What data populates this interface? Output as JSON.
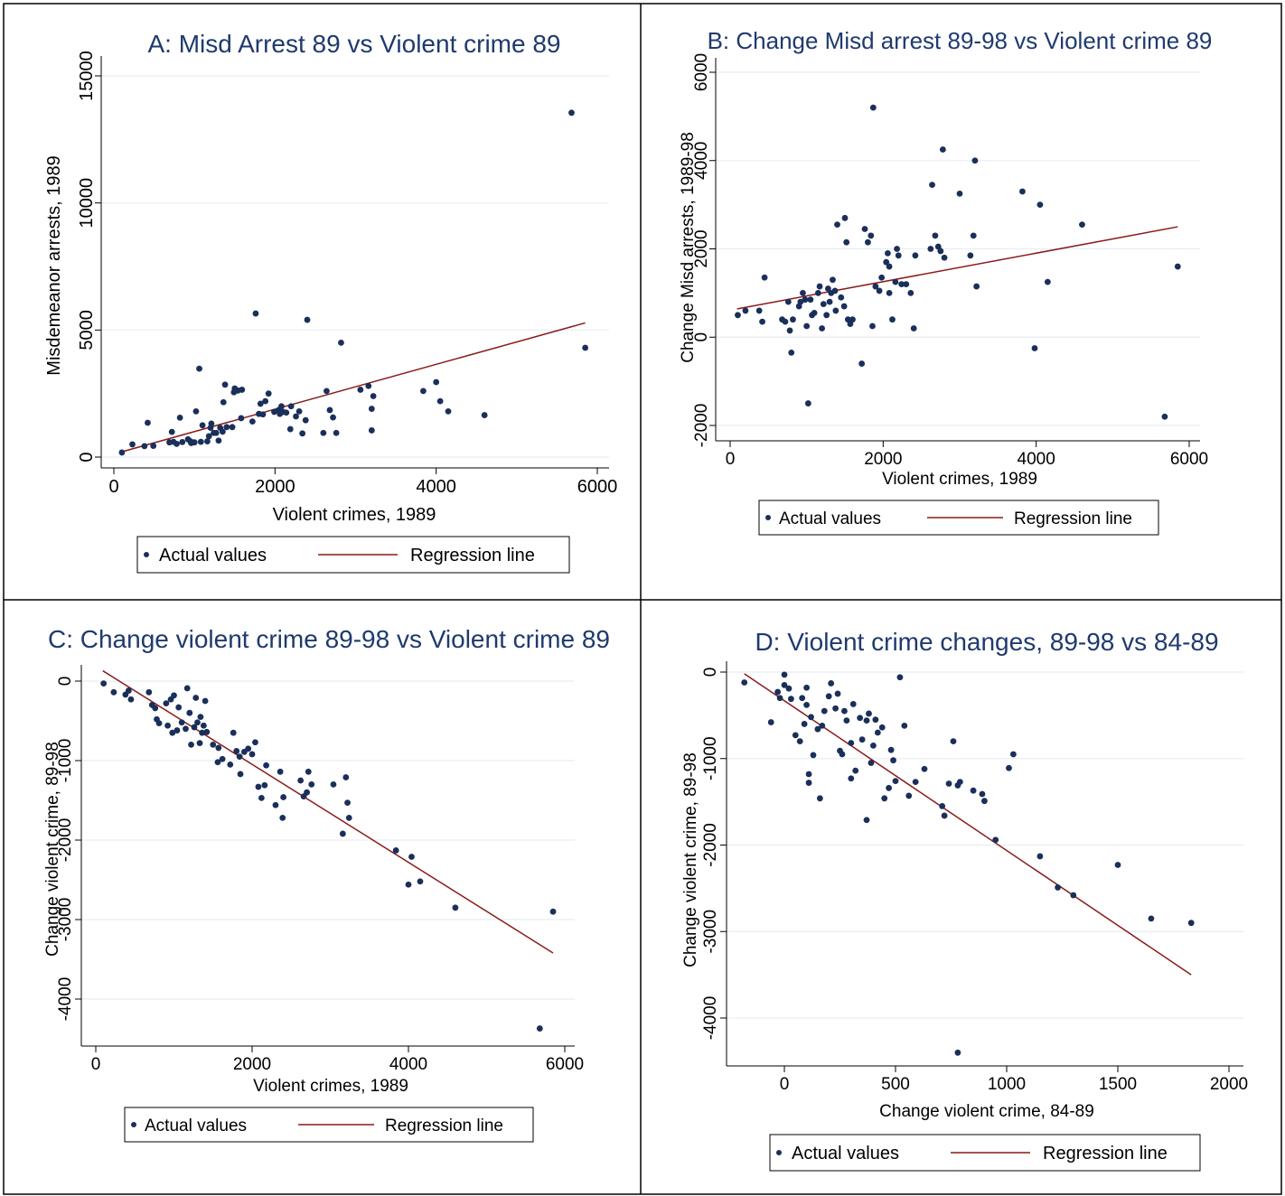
{
  "colors": {
    "point": "#1a2f5a",
    "line": "#8b1a1a",
    "grid": "#e8eef3",
    "title": "#1f3a6e",
    "frame": "#000000"
  },
  "legend_labels": {
    "points": "Actual values",
    "line": "Regression line"
  },
  "chart_data": [
    {
      "type": "scatter",
      "title": "A: Misd Arrest 89 vs Violent crime 89",
      "xlabel": "Violent crimes, 1989",
      "ylabel": "Misdemeanor arrests, 1989",
      "xlim": [
        0,
        6200
      ],
      "ylim": [
        0,
        15000
      ],
      "xticks": [
        0,
        2000,
        4000,
        6000
      ],
      "yticks": [
        0,
        5000,
        10000,
        15000
      ],
      "grid": true,
      "legend": "bottom",
      "regression": [
        [
          90,
          200
        ],
        [
          5850,
          5280
        ]
      ],
      "points": [
        [
          100,
          180
        ],
        [
          230,
          500
        ],
        [
          380,
          430
        ],
        [
          420,
          1350
        ],
        [
          490,
          440
        ],
        [
          690,
          580
        ],
        [
          720,
          990
        ],
        [
          740,
          600
        ],
        [
          780,
          520
        ],
        [
          820,
          1550
        ],
        [
          850,
          590
        ],
        [
          920,
          700
        ],
        [
          950,
          620
        ],
        [
          960,
          550
        ],
        [
          1000,
          580
        ],
        [
          1020,
          1800
        ],
        [
          1060,
          3480
        ],
        [
          1080,
          600
        ],
        [
          1100,
          1250
        ],
        [
          1160,
          620
        ],
        [
          1180,
          820
        ],
        [
          1200,
          1150
        ],
        [
          1210,
          1320
        ],
        [
          1240,
          950
        ],
        [
          1270,
          950
        ],
        [
          1300,
          650
        ],
        [
          1320,
          1150
        ],
        [
          1350,
          1000
        ],
        [
          1360,
          2160
        ],
        [
          1380,
          2850
        ],
        [
          1400,
          1180
        ],
        [
          1470,
          1180
        ],
        [
          1490,
          2550
        ],
        [
          1500,
          2700
        ],
        [
          1540,
          2620
        ],
        [
          1580,
          1530
        ],
        [
          1590,
          2650
        ],
        [
          1720,
          1400
        ],
        [
          1760,
          5650
        ],
        [
          1800,
          1700
        ],
        [
          1820,
          2100
        ],
        [
          1850,
          1680
        ],
        [
          1880,
          2200
        ],
        [
          1920,
          2500
        ],
        [
          1990,
          1780
        ],
        [
          2050,
          1860
        ],
        [
          2060,
          1700
        ],
        [
          2080,
          2000
        ],
        [
          2100,
          1780
        ],
        [
          2140,
          1750
        ],
        [
          2190,
          1100
        ],
        [
          2200,
          2000
        ],
        [
          2260,
          1600
        ],
        [
          2300,
          1800
        ],
        [
          2340,
          930
        ],
        [
          2380,
          1450
        ],
        [
          2400,
          5400
        ],
        [
          2820,
          4500
        ],
        [
          2600,
          950
        ],
        [
          2640,
          2600
        ],
        [
          2680,
          1850
        ],
        [
          2720,
          1560
        ],
        [
          2760,
          950
        ],
        [
          3060,
          2650
        ],
        [
          3160,
          2800
        ],
        [
          3200,
          1050
        ],
        [
          3220,
          2400
        ],
        [
          3200,
          1900
        ],
        [
          3840,
          2600
        ],
        [
          4000,
          2950
        ],
        [
          4050,
          2200
        ],
        [
          4150,
          1800
        ],
        [
          4600,
          1650
        ],
        [
          5680,
          13550
        ],
        [
          5850,
          4300
        ]
      ]
    },
    {
      "type": "scatter",
      "title": "B: Change Misd arrest 89-98 vs Violent crime 89",
      "xlabel": "Violent crimes, 1989",
      "ylabel": "Change Misd arrests, 1989-98",
      "xlim": [
        -300,
        6200
      ],
      "ylim": [
        -2200,
        6200
      ],
      "xticks": [
        0,
        2000,
        4000,
        6000
      ],
      "yticks": [
        -2000,
        0,
        2000,
        4000,
        6000
      ],
      "grid": true,
      "legend": "bottom",
      "regression": [
        [
          90,
          640
        ],
        [
          5850,
          2500
        ]
      ],
      "points": [
        [
          100,
          500
        ],
        [
          200,
          600
        ],
        [
          380,
          600
        ],
        [
          420,
          350
        ],
        [
          450,
          1350
        ],
        [
          680,
          400
        ],
        [
          720,
          350
        ],
        [
          760,
          800
        ],
        [
          780,
          150
        ],
        [
          800,
          -350
        ],
        [
          820,
          400
        ],
        [
          900,
          700
        ],
        [
          920,
          800
        ],
        [
          950,
          1000
        ],
        [
          980,
          850
        ],
        [
          1000,
          250
        ],
        [
          1020,
          -1500
        ],
        [
          1050,
          850
        ],
        [
          1070,
          500
        ],
        [
          1100,
          550
        ],
        [
          1150,
          1000
        ],
        [
          1170,
          1150
        ],
        [
          1200,
          200
        ],
        [
          1220,
          750
        ],
        [
          1260,
          500
        ],
        [
          1280,
          1100
        ],
        [
          1300,
          800
        ],
        [
          1320,
          1000
        ],
        [
          1340,
          1300
        ],
        [
          1370,
          1050
        ],
        [
          1380,
          600
        ],
        [
          1400,
          2550
        ],
        [
          1450,
          900
        ],
        [
          1490,
          700
        ],
        [
          1500,
          2700
        ],
        [
          1520,
          2150
        ],
        [
          1540,
          400
        ],
        [
          1570,
          300
        ],
        [
          1600,
          400
        ],
        [
          1720,
          -600
        ],
        [
          1760,
          2450
        ],
        [
          1800,
          2150
        ],
        [
          1840,
          2300
        ],
        [
          1860,
          250
        ],
        [
          1870,
          5200
        ],
        [
          1900,
          1150
        ],
        [
          1950,
          1050
        ],
        [
          1980,
          1350
        ],
        [
          2040,
          1700
        ],
        [
          2060,
          1900
        ],
        [
          2080,
          1600
        ],
        [
          2080,
          1000
        ],
        [
          2120,
          400
        ],
        [
          2160,
          1250
        ],
        [
          2180,
          2000
        ],
        [
          2200,
          1850
        ],
        [
          2240,
          1200
        ],
        [
          2300,
          1200
        ],
        [
          2360,
          1000
        ],
        [
          2400,
          200
        ],
        [
          2420,
          1850
        ],
        [
          2620,
          2000
        ],
        [
          2640,
          3450
        ],
        [
          2680,
          2300
        ],
        [
          2720,
          2050
        ],
        [
          2750,
          1950
        ],
        [
          2780,
          4250
        ],
        [
          2800,
          1800
        ],
        [
          3000,
          3250
        ],
        [
          3140,
          1850
        ],
        [
          3180,
          2300
        ],
        [
          3200,
          4000
        ],
        [
          3220,
          1150
        ],
        [
          3820,
          3300
        ],
        [
          3980,
          -250
        ],
        [
          4050,
          3000
        ],
        [
          4150,
          1250
        ],
        [
          4600,
          2550
        ],
        [
          5680,
          -1800
        ],
        [
          5850,
          1600
        ]
      ]
    },
    {
      "type": "scatter",
      "title": "C: Change violent crime 89-98 vs Violent crime 89",
      "xlabel": "Violent crimes, 1989",
      "ylabel": "Change violent crime, 89-98",
      "xlim": [
        -200,
        6200
      ],
      "ylim": [
        -4600,
        200
      ],
      "xticks": [
        0,
        2000,
        4000,
        6000
      ],
      "yticks": [
        -4000,
        -3000,
        -2000,
        -1000,
        0
      ],
      "grid": true,
      "legend": "bottom",
      "regression": [
        [
          90,
          130
        ],
        [
          5850,
          -3420
        ]
      ],
      "points": [
        [
          100,
          -30
        ],
        [
          230,
          -140
        ],
        [
          380,
          -170
        ],
        [
          420,
          -120
        ],
        [
          450,
          -230
        ],
        [
          680,
          -140
        ],
        [
          720,
          -300
        ],
        [
          760,
          -340
        ],
        [
          780,
          -480
        ],
        [
          810,
          -530
        ],
        [
          900,
          -280
        ],
        [
          920,
          -560
        ],
        [
          960,
          -230
        ],
        [
          980,
          -650
        ],
        [
          1000,
          -180
        ],
        [
          1040,
          -620
        ],
        [
          1060,
          -330
        ],
        [
          1100,
          -520
        ],
        [
          1150,
          -600
        ],
        [
          1170,
          -90
        ],
        [
          1200,
          -400
        ],
        [
          1220,
          -800
        ],
        [
          1260,
          -580
        ],
        [
          1280,
          -210
        ],
        [
          1300,
          -520
        ],
        [
          1330,
          -780
        ],
        [
          1340,
          -450
        ],
        [
          1360,
          -650
        ],
        [
          1380,
          -560
        ],
        [
          1400,
          -250
        ],
        [
          1420,
          -640
        ],
        [
          1500,
          -800
        ],
        [
          1560,
          -1020
        ],
        [
          1570,
          -840
        ],
        [
          1620,
          -980
        ],
        [
          1720,
          -1050
        ],
        [
          1760,
          -650
        ],
        [
          1800,
          -880
        ],
        [
          1840,
          -950
        ],
        [
          1850,
          -1170
        ],
        [
          1900,
          -890
        ],
        [
          1950,
          -850
        ],
        [
          2000,
          -920
        ],
        [
          2040,
          -770
        ],
        [
          2080,
          -1330
        ],
        [
          2120,
          -1470
        ],
        [
          2160,
          -1310
        ],
        [
          2180,
          -1060
        ],
        [
          2300,
          -1560
        ],
        [
          2360,
          -1140
        ],
        [
          2390,
          -1720
        ],
        [
          2400,
          -1460
        ],
        [
          2620,
          -1250
        ],
        [
          2660,
          -1450
        ],
        [
          2700,
          -1400
        ],
        [
          2720,
          -1140
        ],
        [
          2760,
          -1300
        ],
        [
          3040,
          -1300
        ],
        [
          3160,
          -1920
        ],
        [
          3200,
          -1210
        ],
        [
          3220,
          -1530
        ],
        [
          3240,
          -1720
        ],
        [
          3840,
          -2130
        ],
        [
          4000,
          -2560
        ],
        [
          4040,
          -2210
        ],
        [
          4150,
          -2520
        ],
        [
          4600,
          -2850
        ],
        [
          5680,
          -4370
        ],
        [
          5850,
          -2900
        ]
      ]
    },
    {
      "type": "scatter",
      "title": "D: Violent crime changes, 89-98 vs 84-89",
      "xlabel": "Change violent crime, 84-89",
      "ylabel": "Change violent crime, 89-98",
      "xlim": [
        -250,
        2100
      ],
      "ylim": [
        -4600,
        200
      ],
      "xticks": [
        0,
        500,
        1000,
        1500,
        2000
      ],
      "yticks": [
        -4000,
        -3000,
        -2000,
        -1000,
        0
      ],
      "grid": true,
      "legend": "bottom",
      "regression": [
        [
          -180,
          -20
        ],
        [
          1830,
          -3500
        ]
      ],
      "points": [
        [
          -180,
          -120
        ],
        [
          -60,
          -580
        ],
        [
          -30,
          -230
        ],
        [
          -20,
          -300
        ],
        [
          0,
          -30
        ],
        [
          0,
          -150
        ],
        [
          20,
          -190
        ],
        [
          30,
          -310
        ],
        [
          50,
          -730
        ],
        [
          70,
          -800
        ],
        [
          80,
          -300
        ],
        [
          90,
          -600
        ],
        [
          100,
          -380
        ],
        [
          100,
          -180
        ],
        [
          110,
          -1180
        ],
        [
          110,
          -1280
        ],
        [
          120,
          -520
        ],
        [
          130,
          -960
        ],
        [
          150,
          -660
        ],
        [
          160,
          -1460
        ],
        [
          170,
          -620
        ],
        [
          180,
          -450
        ],
        [
          200,
          -280
        ],
        [
          210,
          -130
        ],
        [
          230,
          -420
        ],
        [
          240,
          -250
        ],
        [
          250,
          -910
        ],
        [
          260,
          -950
        ],
        [
          270,
          -450
        ],
        [
          280,
          -560
        ],
        [
          300,
          -1230
        ],
        [
          300,
          -820
        ],
        [
          310,
          -370
        ],
        [
          320,
          -1140
        ],
        [
          340,
          -530
        ],
        [
          350,
          -780
        ],
        [
          370,
          -560
        ],
        [
          370,
          -1710
        ],
        [
          380,
          -480
        ],
        [
          390,
          -1050
        ],
        [
          400,
          -850
        ],
        [
          410,
          -550
        ],
        [
          420,
          -700
        ],
        [
          440,
          -640
        ],
        [
          450,
          -1460
        ],
        [
          470,
          -1340
        ],
        [
          480,
          -900
        ],
        [
          490,
          -1020
        ],
        [
          500,
          -1260
        ],
        [
          520,
          -60
        ],
        [
          540,
          -620
        ],
        [
          560,
          -1430
        ],
        [
          590,
          -1270
        ],
        [
          630,
          -1120
        ],
        [
          710,
          -1550
        ],
        [
          720,
          -1660
        ],
        [
          740,
          -1290
        ],
        [
          760,
          -800
        ],
        [
          780,
          -1310
        ],
        [
          790,
          -1270
        ],
        [
          850,
          -1370
        ],
        [
          890,
          -1410
        ],
        [
          900,
          -1490
        ],
        [
          950,
          -1940
        ],
        [
          1010,
          -1110
        ],
        [
          1030,
          -950
        ],
        [
          1150,
          -2130
        ],
        [
          1230,
          -2490
        ],
        [
          1300,
          -2580
        ],
        [
          1500,
          -2230
        ],
        [
          1650,
          -2850
        ],
        [
          1830,
          -2900
        ],
        [
          780,
          -4400
        ]
      ]
    }
  ]
}
